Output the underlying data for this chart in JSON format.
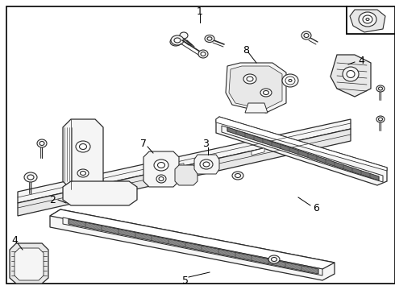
{
  "background_color": "#ffffff",
  "border_color": "#000000",
  "line_color": "#2a2a2a",
  "light_fill": "#f5f5f5",
  "mid_fill": "#e8e8e8",
  "dark_fill": "#d0d0d0"
}
